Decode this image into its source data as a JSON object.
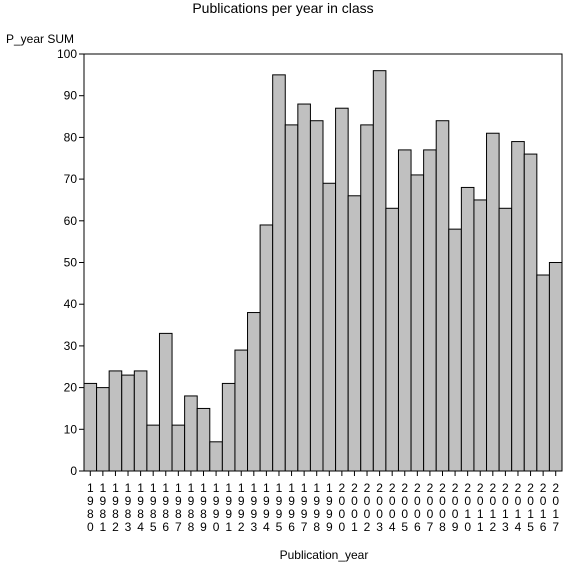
{
  "chart_data": {
    "type": "bar",
    "title": "Publications per year in class",
    "ylabel": "P_year SUM",
    "xlabel": "Publication_year",
    "ylim": [
      0,
      100
    ],
    "yticks": [
      0,
      10,
      20,
      30,
      40,
      50,
      60,
      70,
      80,
      90,
      100
    ],
    "grid": false,
    "legend": "none",
    "bar_color": "#c0c0c0",
    "categories": [
      "1980",
      "1981",
      "1982",
      "1983",
      "1984",
      "1985",
      "1986",
      "1987",
      "1988",
      "1989",
      "1990",
      "1991",
      "1992",
      "1993",
      "1994",
      "1995",
      "1996",
      "1997",
      "1998",
      "1999",
      "2000",
      "2001",
      "2002",
      "2003",
      "2004",
      "2005",
      "2006",
      "2007",
      "2008",
      "2009",
      "2010",
      "2011",
      "2012",
      "2013",
      "2014",
      "2015",
      "2016",
      "2017"
    ],
    "values": [
      21,
      20,
      24,
      23,
      24,
      11,
      33,
      11,
      18,
      15,
      7,
      21,
      29,
      38,
      59,
      95,
      83,
      88,
      84,
      69,
      87,
      66,
      83,
      96,
      63,
      77,
      71,
      77,
      84,
      58,
      68,
      65,
      81,
      63,
      79,
      76,
      47,
      50
    ]
  }
}
